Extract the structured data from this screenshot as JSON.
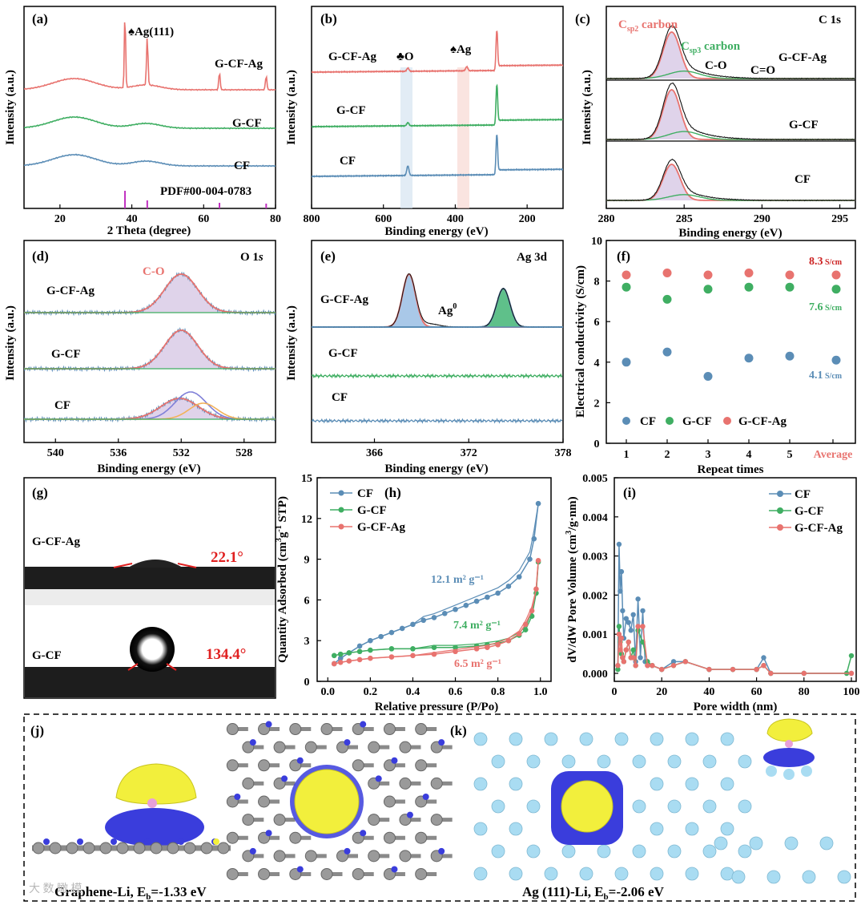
{
  "chart_data": [
    {
      "panel": "(a)",
      "type": "line",
      "xlabel": "2 Theta (degree)",
      "ylabel": "Intensity (a.u.)",
      "xlim": [
        10,
        80
      ],
      "xticks": [
        20,
        40,
        60,
        80
      ],
      "series": [
        {
          "name": "G-CF-Ag",
          "color": "#e8736f",
          "peaks": [
            38.1,
            44.3,
            64.4,
            77.4
          ]
        },
        {
          "name": "G-CF",
          "color": "#3fae62"
        },
        {
          "name": "CF",
          "color": "#5b8db6"
        }
      ],
      "reference": {
        "name": "PDF#00-004-0783",
        "positions": [
          38.1,
          44.3,
          64.4,
          77.4
        ],
        "color": "#c030c0"
      },
      "annotations": [
        "♠Ag(111)"
      ]
    },
    {
      "panel": "(b)",
      "type": "line",
      "xlabel": "Binding energy (eV)",
      "ylabel": "Intensity (a.u.)",
      "xlim": [
        800,
        100
      ],
      "xticks": [
        800,
        600,
        400,
        200
      ],
      "series": [
        {
          "name": "G-CF-Ag",
          "color": "#e8736f"
        },
        {
          "name": "G-CF",
          "color": "#3fae62"
        },
        {
          "name": "CF",
          "color": "#5b8db6"
        }
      ],
      "bands": [
        {
          "label": "♣O",
          "x": 532
        },
        {
          "label": "♠Ag",
          "x": 368
        }
      ]
    },
    {
      "panel": "(c)",
      "type": "line",
      "xlabel": "Binding energy (eV)",
      "ylabel": "Intensity (a.u.)",
      "xlim": [
        280,
        296
      ],
      "xticks": [
        280,
        285,
        290,
        295
      ],
      "title": "C 1s",
      "stacks": [
        "G-CF-Ag",
        "G-CF",
        "CF"
      ],
      "components": [
        {
          "name": "Csp2 carbon",
          "main": "C",
          "sub": "sp2",
          "rest": " carbon",
          "x": 284.2,
          "color": "#e8736f"
        },
        {
          "name": "Csp3 carbon",
          "main": "C",
          "sub": "sp3",
          "rest": " carbon",
          "x": 285.0,
          "color": "#3fae62"
        },
        {
          "name": "C-O",
          "x": 286.3
        },
        {
          "name": "C=O",
          "x": 288.5
        }
      ]
    },
    {
      "panel": "(d)",
      "type": "line",
      "xlabel": "Binding energy (eV)",
      "ylabel": "Intensity (a.u.)",
      "xlim": [
        542,
        526
      ],
      "xticks": [
        540,
        536,
        532,
        528
      ],
      "title": "O 1s",
      "component": "C-O",
      "series": [
        {
          "name": "G-CF-Ag",
          "color": "#3fae62"
        },
        {
          "name": "G-CF",
          "color": "#3fae62"
        },
        {
          "name": "CF",
          "color": "#e8736f"
        }
      ]
    },
    {
      "panel": "(e)",
      "type": "line",
      "xlabel": "Binding energy (eV)",
      "ylabel": "Intensity (a.u.)",
      "xlim": [
        362,
        378
      ],
      "xticks": [
        366,
        372,
        378
      ],
      "title": "Ag 3d",
      "annotation": "Ag0",
      "series": [
        {
          "name": "G-CF-Ag",
          "color": "#5b8db6",
          "peaks": [
            368.2,
            374.2
          ]
        },
        {
          "name": "G-CF",
          "color": "#3fae62"
        },
        {
          "name": "CF",
          "color": "#5b8db6"
        }
      ]
    },
    {
      "panel": "(f)",
      "type": "scatter",
      "xlabel": "Repeat times",
      "ylabel": "Electrical conductivity (S/cm)",
      "ylim": [
        0,
        10
      ],
      "yticks": [
        0,
        2,
        4,
        6,
        8,
        10
      ],
      "categories": [
        "1",
        "2",
        "3",
        "4",
        "5",
        "Average"
      ],
      "series": [
        {
          "name": "CF",
          "color": "#5b8db6",
          "values": [
            4.0,
            4.5,
            3.3,
            4.2,
            4.3,
            4.1
          ]
        },
        {
          "name": "G-CF",
          "color": "#3fae62",
          "values": [
            7.7,
            7.1,
            7.6,
            7.7,
            7.7,
            7.6
          ]
        },
        {
          "name": "G-CF-Ag",
          "color": "#e8736f",
          "values": [
            8.3,
            8.4,
            8.3,
            8.4,
            8.3,
            8.3
          ]
        }
      ],
      "value_labels": [
        {
          "value": "8.3",
          "unit": " S/cm",
          "color": "#cc2222"
        },
        {
          "value": "7.6",
          "unit": " S/cm",
          "color": "#3fae62"
        },
        {
          "value": "4.1",
          "unit": " S/cm",
          "color": "#5b8db6"
        }
      ]
    },
    {
      "panel": "(g)",
      "type": "image",
      "items": [
        {
          "name": "G-CF-Ag",
          "angle": "22.1°"
        },
        {
          "name": "G-CF",
          "angle": "134.4°"
        }
      ]
    },
    {
      "panel": "(h)",
      "type": "line",
      "xlabel": "Relative pressure (P/Po)",
      "ylabel": "Quantity Adsorbed (cm3g-1 STP)",
      "xlim": [
        -0.05,
        1.05
      ],
      "ylim": [
        0,
        15
      ],
      "xticks": [
        0.0,
        0.2,
        0.4,
        0.6,
        0.8,
        1.0
      ],
      "yticks": [
        0,
        3,
        6,
        9,
        12,
        15
      ],
      "series": [
        {
          "name": "CF",
          "color": "#5b8db6",
          "surface_area": "12.1 m² g⁻¹",
          "x": [
            0.03,
            0.06,
            0.1,
            0.15,
            0.2,
            0.25,
            0.3,
            0.35,
            0.4,
            0.45,
            0.5,
            0.55,
            0.6,
            0.65,
            0.7,
            0.75,
            0.8,
            0.85,
            0.9,
            0.95,
            0.97,
            0.99
          ],
          "y": [
            1.3,
            1.7,
            2.1,
            2.6,
            3.0,
            3.3,
            3.6,
            3.9,
            4.2,
            4.5,
            4.7,
            5.0,
            5.3,
            5.6,
            5.9,
            6.2,
            6.5,
            7.0,
            7.7,
            9.0,
            10.5,
            13.1
          ]
        },
        {
          "name": "G-CF",
          "color": "#3fae62",
          "surface_area": "7.4 m² g⁻¹",
          "x": [
            0.03,
            0.06,
            0.1,
            0.15,
            0.2,
            0.3,
            0.4,
            0.5,
            0.6,
            0.7,
            0.75,
            0.8,
            0.85,
            0.9,
            0.93,
            0.96,
            0.98,
            0.99
          ],
          "y": [
            1.9,
            2.0,
            2.1,
            2.2,
            2.3,
            2.4,
            2.4,
            2.5,
            2.5,
            2.6,
            2.7,
            2.8,
            3.0,
            3.4,
            3.8,
            4.8,
            6.5,
            8.8
          ]
        },
        {
          "name": "G-CF-Ag",
          "color": "#e8736f",
          "surface_area": "6.5 m² g⁻¹",
          "x": [
            0.03,
            0.06,
            0.1,
            0.15,
            0.2,
            0.3,
            0.4,
            0.5,
            0.6,
            0.7,
            0.75,
            0.8,
            0.85,
            0.9,
            0.93,
            0.96,
            0.98,
            0.99
          ],
          "y": [
            1.3,
            1.4,
            1.5,
            1.6,
            1.7,
            1.8,
            1.9,
            2.0,
            2.2,
            2.4,
            2.5,
            2.7,
            3.0,
            3.5,
            4.2,
            5.2,
            6.8,
            8.9
          ]
        }
      ]
    },
    {
      "panel": "(i)",
      "type": "line",
      "xlabel": "Pore width (nm)",
      "ylabel": "dV/dW Pore Volume (cm3/g·nm)",
      "xlim": [
        0,
        100
      ],
      "ylim": [
        0,
        0.005
      ],
      "xticks": [
        0,
        20,
        40,
        60,
        80,
        100
      ],
      "yticks": [
        "0.000",
        "0.001",
        "0.002",
        "0.003",
        "0.004",
        "0.005"
      ],
      "series": [
        {
          "name": "CF",
          "color": "#5b8db6",
          "x": [
            1.5,
            2,
            2.5,
            3,
            3.5,
            4,
            5,
            6,
            7,
            8,
            9,
            10,
            11,
            12,
            13,
            14,
            16,
            20,
            25,
            30,
            40,
            50,
            60,
            63,
            66,
            80,
            100
          ],
          "y": [
            0.0002,
            0.0033,
            0.0021,
            0.0026,
            0.0016,
            0.0009,
            0.0014,
            0.0013,
            0.0011,
            0.0015,
            0.0003,
            0.0019,
            0.0004,
            0.0016,
            0.0003,
            0.0002,
            0.0002,
            0.0001,
            0.0003,
            0.0003,
            0.0001,
            0.0001,
            0.0001,
            0.0004,
            0.0,
            0.0,
            0.0
          ]
        },
        {
          "name": "G-CF",
          "color": "#3fae62",
          "x": [
            1.5,
            2,
            2.5,
            3,
            3.5,
            4,
            5,
            6,
            7,
            8,
            9,
            10,
            12,
            14,
            16,
            20,
            25,
            30,
            40,
            50,
            60,
            63,
            66,
            80,
            98,
            100
          ],
          "y": [
            0.0001,
            0.0012,
            0.0008,
            0.0005,
            0.0004,
            0.0003,
            0.0006,
            0.0008,
            0.0004,
            0.0006,
            0.0002,
            0.0011,
            0.0008,
            0.0003,
            0.0002,
            0.0001,
            0.0002,
            0.0003,
            0.0001,
            0.0001,
            0.0001,
            0.0002,
            0.0,
            0.0,
            0.0,
            0.00045
          ]
        },
        {
          "name": "G-CF-Ag",
          "color": "#e8736f",
          "x": [
            1.5,
            2,
            2.5,
            3,
            3.5,
            4,
            5,
            6,
            7,
            8,
            9,
            10,
            12,
            14,
            16,
            20,
            25,
            30,
            40,
            50,
            60,
            63,
            66,
            80,
            100
          ],
          "y": [
            0.0002,
            0.001,
            0.0006,
            0.0009,
            0.0004,
            0.0003,
            0.0006,
            0.0008,
            0.0004,
            0.0004,
            0.0002,
            0.0012,
            0.0012,
            0.0002,
            0.0002,
            0.0001,
            0.0002,
            0.0003,
            0.0001,
            0.0001,
            0.0001,
            0.0002,
            0.0,
            0.0,
            0.0
          ]
        }
      ]
    },
    {
      "panel": "(j)",
      "type": "image",
      "caption": "Graphene-Li, Eb=-1.33 eV",
      "caption_main": "Graphene-Li, E",
      "caption_sub": "b",
      "caption_rest": "=-1.33 eV"
    },
    {
      "panel": "(k)",
      "type": "image",
      "caption": "Ag (111)-Li, Eb=-2.06 eV",
      "caption_main": "Ag (111)-Li, E",
      "caption_sub": "b",
      "caption_rest": "=-2.06 eV"
    }
  ],
  "labels": {
    "a": {
      "panel": "(a)",
      "ag111": "♠Ag(111)",
      "pdf": "PDF#00-004-0783",
      "s1": "G-CF-Ag",
      "s2": "G-CF",
      "s3": "CF"
    },
    "b": {
      "panel": "(b)",
      "s1": "G-CF-Ag",
      "s2": "G-CF",
      "s3": "CF",
      "o": "♣O",
      "ag": "♠Ag"
    },
    "c": {
      "panel": "(c)",
      "s1": "G-CF-Ag",
      "s2": "G-CF",
      "s3": "CF",
      "title": "C 1s",
      "co": "C-O",
      "c2o": "C=O"
    },
    "d": {
      "panel": "(d)",
      "s1": "G-CF-Ag",
      "s2": "G-CF",
      "s3": "CF",
      "title_main": "O 1",
      "title_sub": "s",
      "co": "C-O"
    },
    "e": {
      "panel": "(e)",
      "s1": "G-CF-Ag",
      "s2": "G-CF",
      "s3": "CF",
      "title": "Ag 3d",
      "ag0_main": "Ag",
      "ag0_sup": "0"
    },
    "f": {
      "panel": "(f)"
    },
    "g": {
      "panel": "(g)"
    },
    "h": {
      "panel": "(h)",
      "ylabel_a": "Quantity Adsorbed (cm",
      "ylabel_b": "3",
      "ylabel_c": "g",
      "ylabel_d": "-1",
      "ylabel_e": " STP)"
    },
    "i": {
      "panel": "(i)",
      "ylabel_a": "dV/dW Pore Volume (cm",
      "ylabel_b": "3",
      "ylabel_c": "/g·nm)"
    },
    "j": {
      "panel": "(j)"
    },
    "k": {
      "panel": "(k)"
    }
  },
  "common": {
    "intensity": "Intensity (a.u.)",
    "binding": "Binding energy (eV)"
  },
  "watermark": "大 数 瞰 模"
}
